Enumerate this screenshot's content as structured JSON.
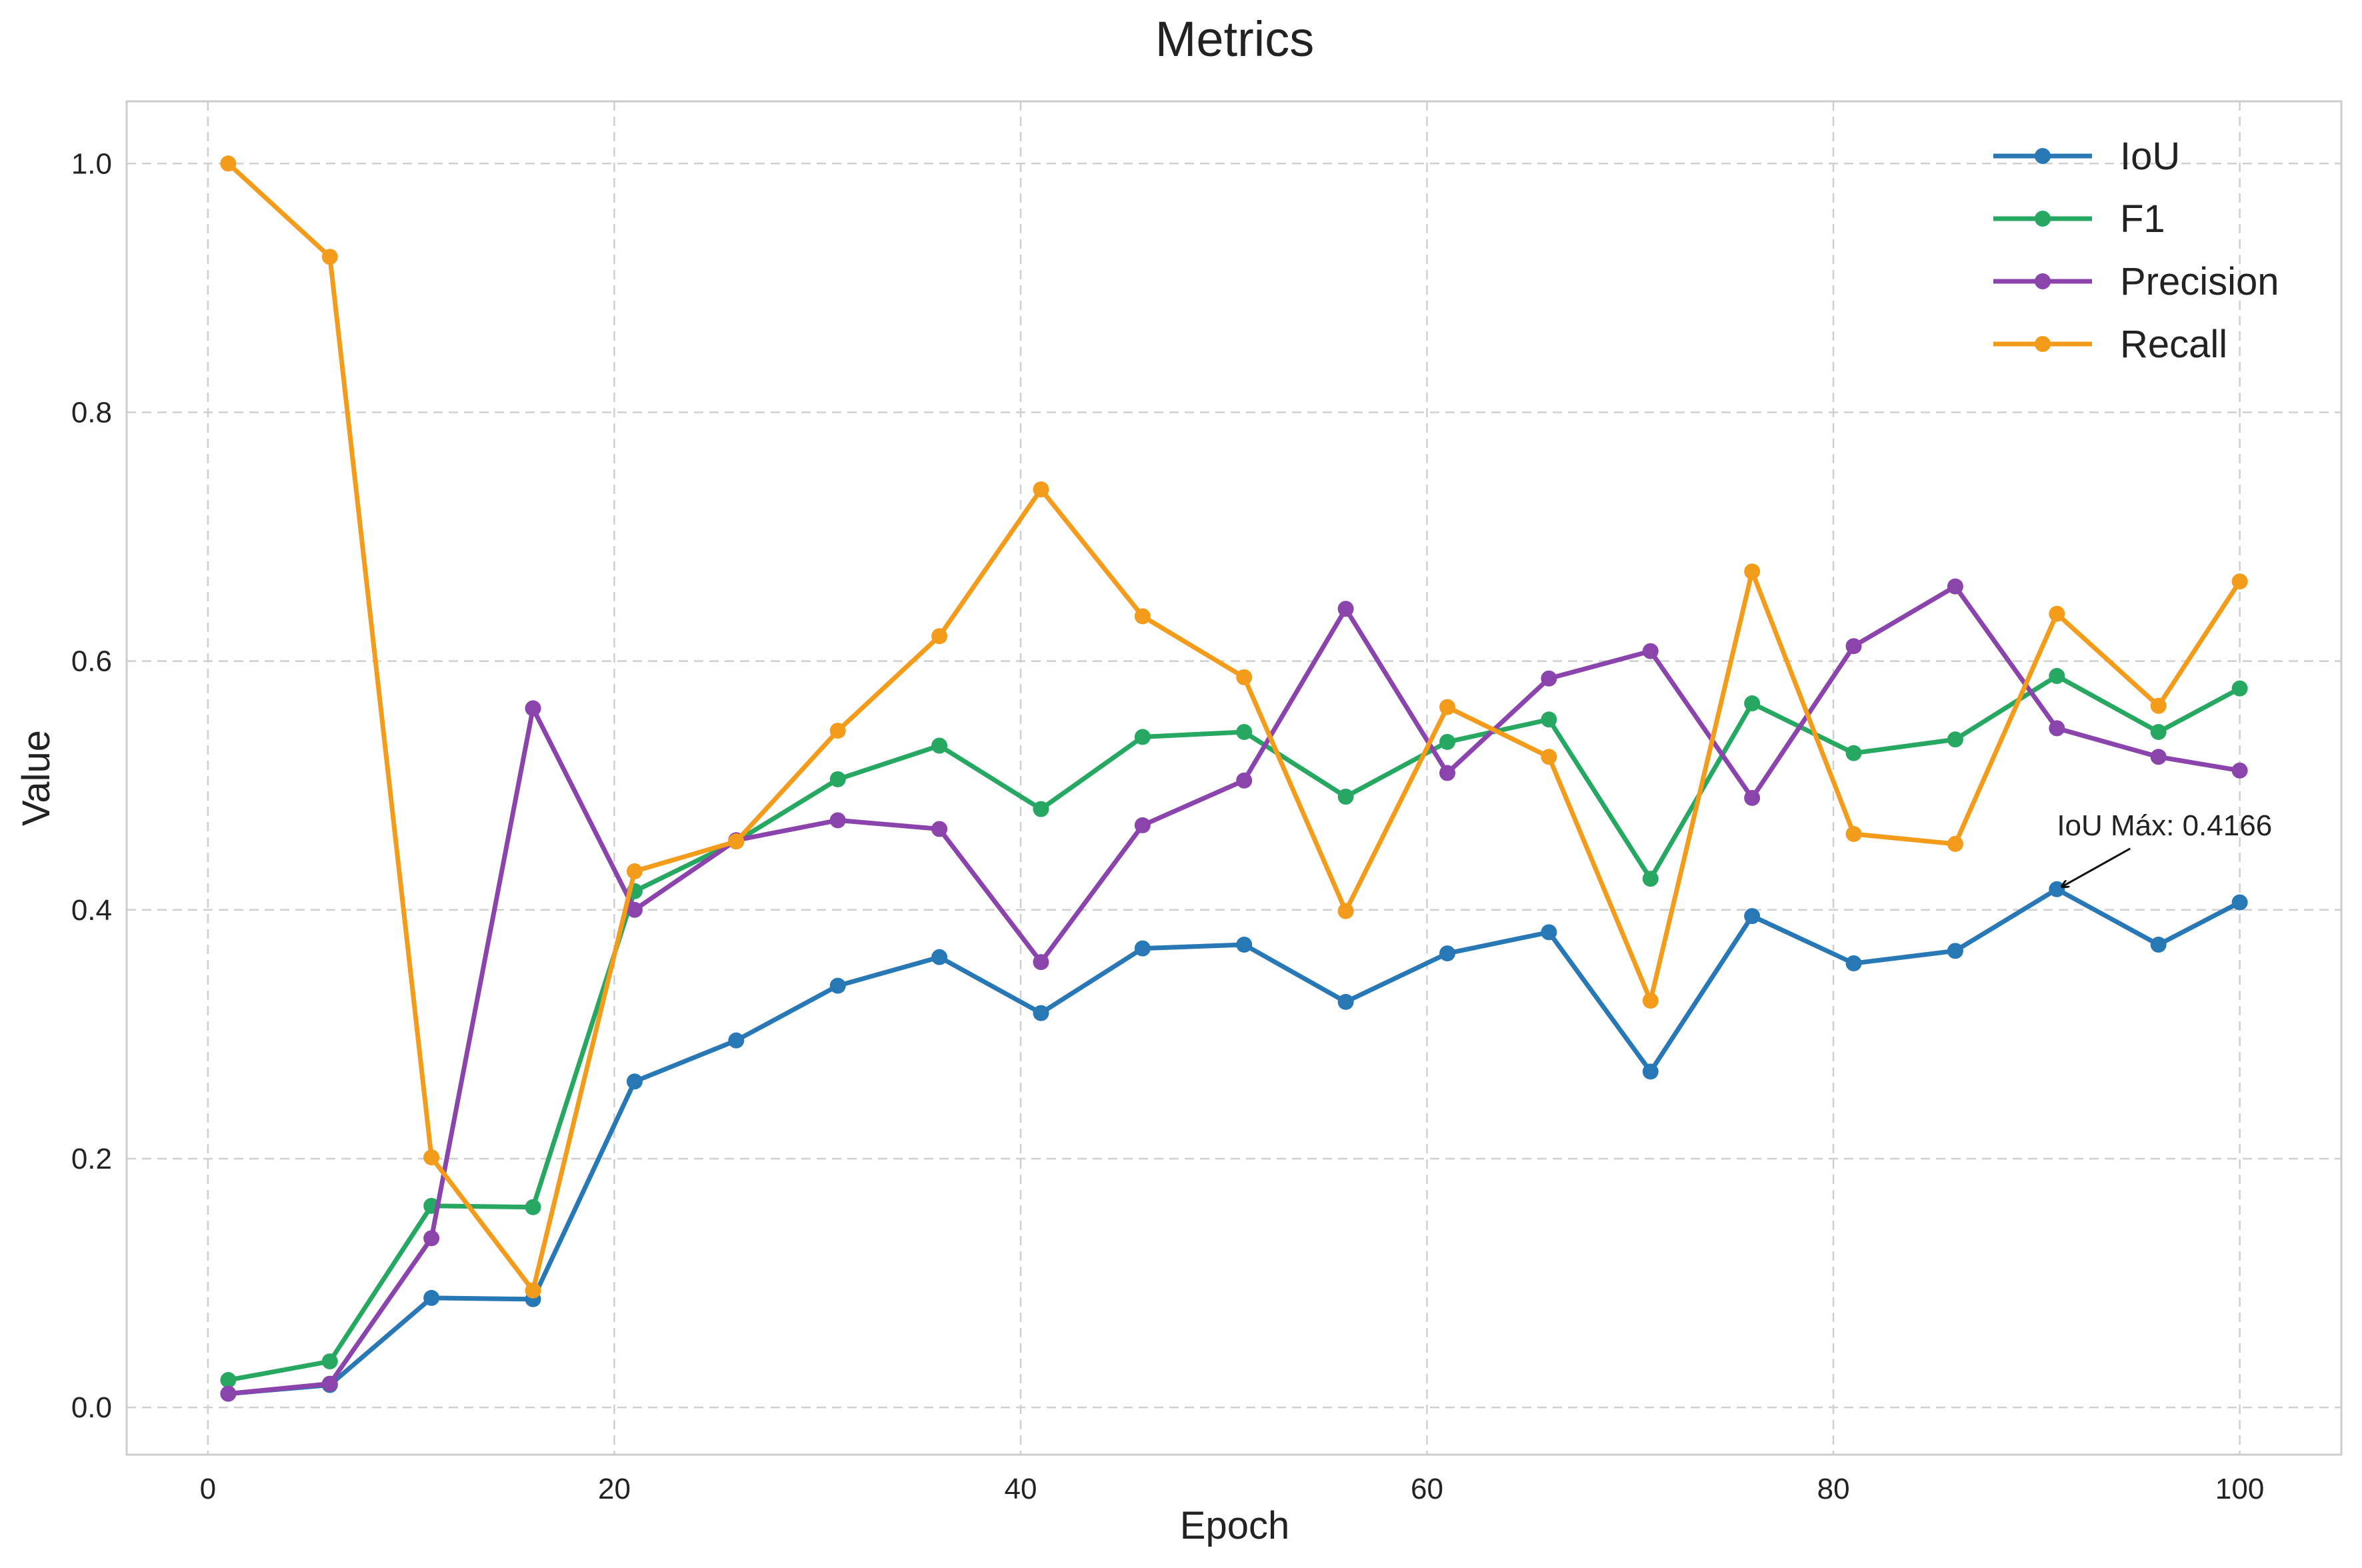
{
  "chart_data": {
    "type": "line",
    "title": "Metrics",
    "xlabel": "Epoch",
    "ylabel": "Value",
    "xlim": [
      -4,
      105
    ],
    "ylim": [
      -0.038,
      1.05
    ],
    "xticks": [
      0,
      20,
      40,
      60,
      80,
      100
    ],
    "xtick_labels": [
      "0",
      "20",
      "40",
      "60",
      "80",
      "100"
    ],
    "yticks": [
      0.0,
      0.2,
      0.4,
      0.6,
      0.8,
      1.0
    ],
    "ytick_labels": [
      "0.0",
      "0.2",
      "0.4",
      "0.6",
      "0.8",
      "1.0"
    ],
    "grid": true,
    "legend_position": "top-right",
    "x": [
      1,
      6,
      11,
      16,
      21,
      26,
      31,
      36,
      41,
      46,
      51,
      56,
      61,
      66,
      71,
      76,
      81,
      86,
      91,
      96,
      100
    ],
    "series": [
      {
        "name": "IoU",
        "color": "#2878b5",
        "values": [
          0.011,
          0.018,
          0.088,
          0.087,
          0.262,
          0.295,
          0.339,
          0.362,
          0.317,
          0.369,
          0.372,
          0.326,
          0.365,
          0.382,
          0.27,
          0.395,
          0.357,
          0.367,
          0.4166,
          0.372,
          0.406
        ]
      },
      {
        "name": "F1",
        "color": "#27a862",
        "values": [
          0.022,
          0.037,
          0.162,
          0.161,
          0.415,
          0.455,
          0.505,
          0.532,
          0.481,
          0.539,
          0.543,
          0.491,
          0.535,
          0.553,
          0.425,
          0.566,
          0.526,
          0.537,
          0.588,
          0.543,
          0.578
        ]
      },
      {
        "name": "Precision",
        "color": "#8a44ac",
        "values": [
          0.011,
          0.019,
          0.136,
          0.562,
          0.4,
          0.456,
          0.472,
          0.465,
          0.358,
          0.468,
          0.504,
          0.642,
          0.51,
          0.586,
          0.608,
          0.49,
          0.612,
          0.66,
          0.546,
          0.523,
          0.512
        ]
      },
      {
        "name": "Recall",
        "color": "#f39c1c",
        "values": [
          1.0,
          0.925,
          0.201,
          0.094,
          0.431,
          0.455,
          0.544,
          0.62,
          0.738,
          0.636,
          0.587,
          0.399,
          0.563,
          0.523,
          0.327,
          0.672,
          0.461,
          0.453,
          0.638,
          0.564,
          0.664
        ]
      }
    ],
    "annotations": [
      {
        "text": "IoU Máx: 0.4166",
        "x": 91,
        "y": 0.4166,
        "text_x": 91,
        "text_y": 0.46
      }
    ]
  }
}
